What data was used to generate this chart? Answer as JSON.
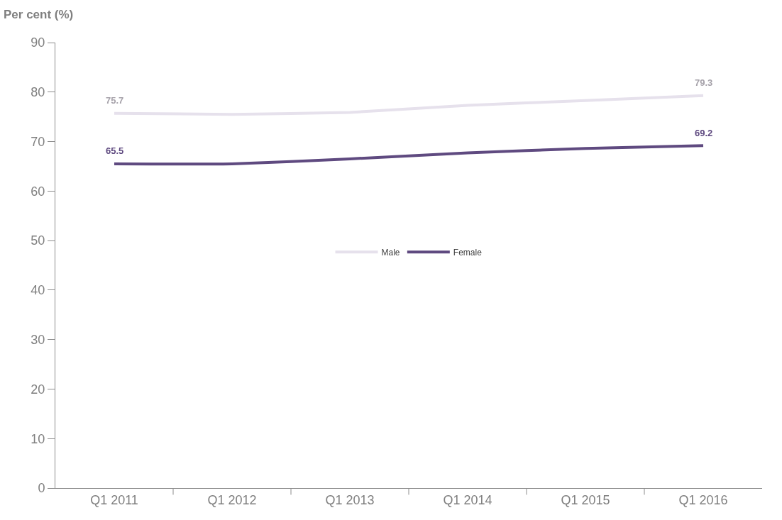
{
  "chart_data": {
    "type": "line",
    "ylabel": "Per cent (%)",
    "categories": [
      "Q1 2011",
      "Q1 2012",
      "Q1 2013",
      "Q1 2014",
      "Q1 2015",
      "Q1 2016"
    ],
    "series": [
      {
        "name": "Male",
        "color": "#e6e1ec",
        "values": [
          75.7,
          75.5,
          75.9,
          77.3,
          78.3,
          79.3
        ],
        "value_labels": [
          "75.7",
          null,
          null,
          null,
          null,
          "79.3"
        ]
      },
      {
        "name": "Female",
        "color": "#5f4a80",
        "values": [
          65.5,
          65.5,
          66.5,
          67.7,
          68.6,
          69.2
        ],
        "value_labels": [
          "65.5",
          null,
          null,
          null,
          null,
          "69.2"
        ]
      }
    ],
    "ylim": [
      0,
      90
    ],
    "yticks": [
      0,
      10,
      20,
      30,
      40,
      50,
      60,
      70,
      80,
      90
    ],
    "grid": false,
    "legend": "center",
    "marker": "none",
    "line_style": "solid"
  }
}
